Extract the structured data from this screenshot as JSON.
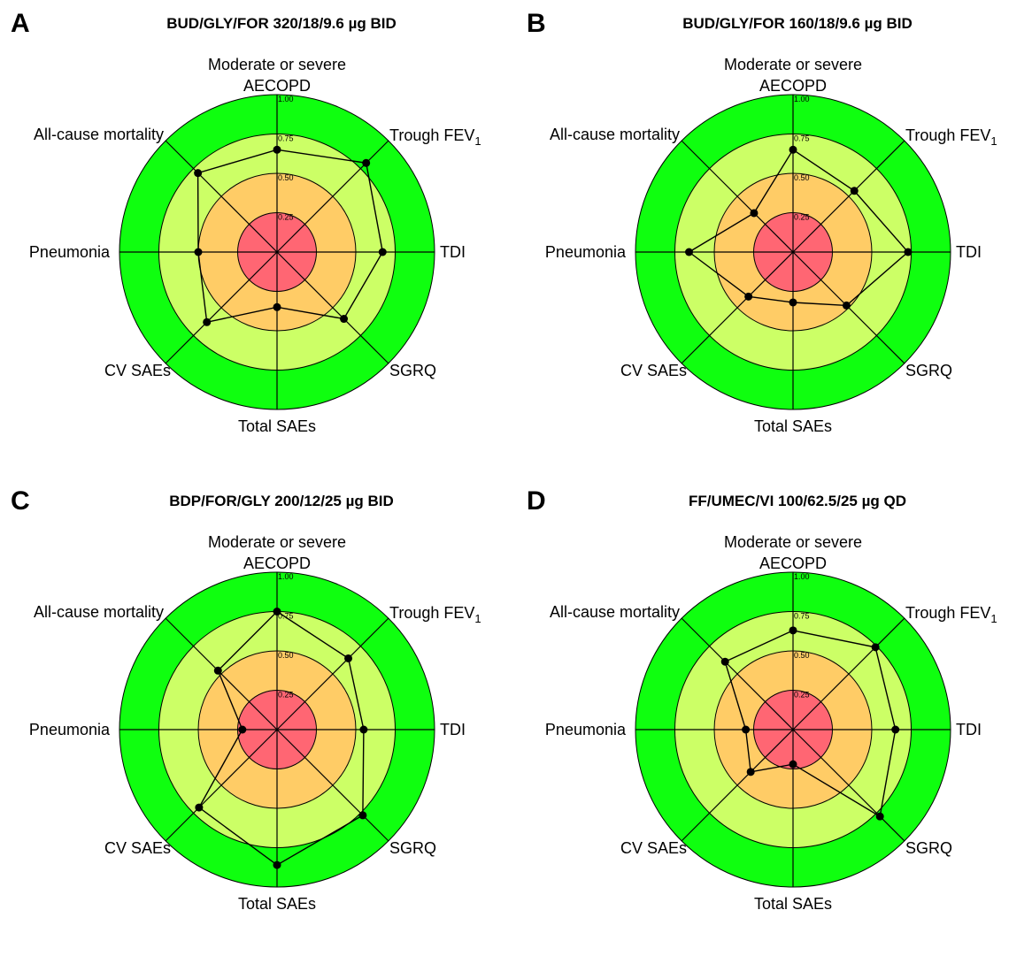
{
  "chart_data": [
    {
      "type": "radar",
      "panel": "A",
      "title": "BUD/GLY/FOR 320/18/9.6 µg BID",
      "axes": [
        "Moderate or severe AECOPD",
        "Trough FEV1",
        "TDI",
        "SGRQ",
        "Total SAEs",
        "CV SAEs",
        "Pneumonia",
        "All-cause mortality"
      ],
      "values": [
        0.65,
        0.8,
        0.67,
        0.6,
        0.35,
        0.63,
        0.5,
        0.71
      ],
      "rings": [
        0.25,
        0.5,
        0.75,
        1.0
      ],
      "tick_labels": [
        "0.25",
        "0.50",
        "0.75",
        "1.00"
      ],
      "rlim": [
        0,
        1
      ]
    },
    {
      "type": "radar",
      "panel": "B",
      "title": "BUD/GLY/FOR 160/18/9.6 µg BID",
      "axes": [
        "Moderate or severe AECOPD",
        "Trough FEV1",
        "TDI",
        "SGRQ",
        "Total SAEs",
        "CV SAEs",
        "Pneumonia",
        "All-cause mortality"
      ],
      "values": [
        0.65,
        0.55,
        0.73,
        0.48,
        0.32,
        0.4,
        0.66,
        0.35
      ],
      "rings": [
        0.25,
        0.5,
        0.75,
        1.0
      ],
      "tick_labels": [
        "0.25",
        "0.50",
        "0.75",
        "1.00"
      ],
      "rlim": [
        0,
        1
      ]
    },
    {
      "type": "radar",
      "panel": "C",
      "title": "BDP/FOR/GLY 200/12/25 µg BID",
      "axes": [
        "Moderate or severe AECOPD",
        "Trough FEV1",
        "TDI",
        "SGRQ",
        "Total SAEs",
        "CV SAEs",
        "Pneumonia",
        "All-cause mortality"
      ],
      "values": [
        0.75,
        0.64,
        0.55,
        0.77,
        0.86,
        0.7,
        0.22,
        0.53
      ],
      "rings": [
        0.25,
        0.5,
        0.75,
        1.0
      ],
      "tick_labels": [
        "0.25",
        "0.50",
        "0.75",
        "1.00"
      ],
      "rlim": [
        0,
        1
      ]
    },
    {
      "type": "radar",
      "panel": "D",
      "title": "FF/UMEC/VI 100/62.5/25 µg QD",
      "axes": [
        "Moderate or severe AECOPD",
        "Trough FEV1",
        "TDI",
        "SGRQ",
        "Total SAEs",
        "CV SAEs",
        "Pneumonia",
        "All-cause mortality"
      ],
      "values": [
        0.63,
        0.74,
        0.65,
        0.78,
        0.22,
        0.38,
        0.3,
        0.61
      ],
      "rings": [
        0.25,
        0.5,
        0.75,
        1.0
      ],
      "tick_labels": [
        "0.25",
        "0.50",
        "0.75",
        "1.00"
      ],
      "rlim": [
        0,
        1
      ]
    }
  ],
  "colors": {
    "ring_0_25": "#ff6673",
    "ring_0_50": "#ffcc66",
    "ring_0_75": "#ccff66",
    "ring_1_00": "#0fff0f",
    "line": "#000000"
  }
}
